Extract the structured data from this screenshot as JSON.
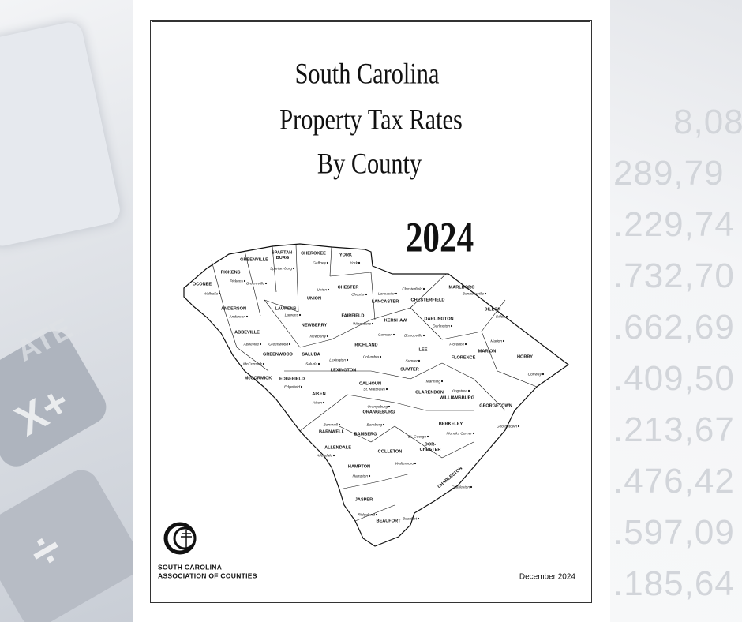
{
  "header": {
    "title_lines": [
      "South Carolina",
      "Property Tax Rates",
      "By County"
    ],
    "year": "2024"
  },
  "map": {
    "counties": [
      "GREENVILLE",
      "PICKENS",
      "OCONEE",
      [
        "SPARTAN-",
        "BURG"
      ],
      "CHEROKEE",
      "YORK",
      "ANDERSON",
      "LAURENS",
      "UNION",
      "CHESTER",
      "LANCASTER",
      "CHESTERFIELD",
      "MARLBORO",
      "DILLON",
      "ABBEVILLE",
      "NEWBERRY",
      "FAIRFIELD",
      "KERSHAW",
      "DARLINGTON",
      "MARION",
      "HORRY",
      "GREENWOOD",
      "SALUDA",
      "RICHLAND",
      "LEE",
      "FLORENCE",
      "McCORMICK",
      "EDGEFIELD",
      "LEXINGTON",
      "SUMTER",
      "CALHOUN",
      "CLARENDON",
      "WILLIAMSBURG",
      "GEORGETOWN",
      "AIKEN",
      "ORANGEBURG",
      "BERKELEY",
      "BARNWELL",
      "BAMBERG",
      [
        "DOR-",
        "CHESTER"
      ],
      "COLLETON",
      "ALLENDALE",
      "HAMPTON",
      "CHARLESTON",
      "JASPER",
      "BEAUFORT"
    ],
    "towns": [
      "Walhalla",
      "Pickens",
      "Green-ville",
      "Spartan-burg",
      "Gaffney",
      "York",
      "Union",
      "Chester",
      "Lancaster",
      "Chesterfield",
      "Bennettsville",
      "Dillon",
      "Anderson",
      "Laurens",
      "Newberry",
      "Winnsboro",
      "Camden",
      "Bishopville",
      "Darlington",
      "Marion",
      "Florence",
      "Conway",
      "Abbeville",
      "Greenwood",
      "Saluda",
      "Columbia",
      "Lexington",
      "Sumter",
      "Manning",
      "Kingstree",
      "McCormick",
      "Edgefield",
      "St. Matthews",
      "Aiken",
      "Orangeburg",
      "Georgetown",
      "Barnwell",
      "Bamberg",
      "St. George",
      "Moncks Corner",
      "Allendale",
      "Walterboro",
      "Charleston",
      "Hampton",
      "Ridgeland",
      "Beaufort"
    ]
  },
  "footer": {
    "org_lines": [
      "SOUTH CAROLINA",
      "ASSOCIATION OF COUNTIES"
    ],
    "date": "December 2024"
  },
  "background": {
    "numbers": [
      "8,08",
      "289,79",
      ".229,74",
      ".732,70",
      ".662,69",
      ".409,50",
      ".213,67",
      ".476,42",
      ".597,09",
      ".185,64"
    ],
    "left_texts": [
      "ATE",
      "X+",
      "÷"
    ]
  }
}
